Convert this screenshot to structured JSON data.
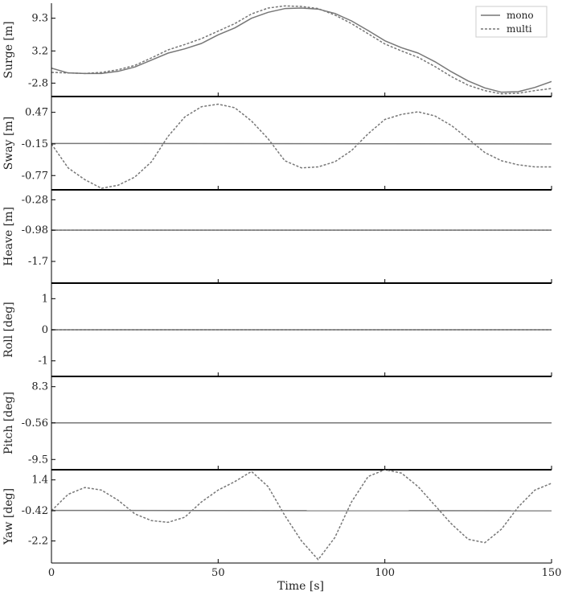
{
  "chart_data": {
    "type": "line",
    "xlabel": "Time [s]",
    "xlim": [
      0,
      150
    ],
    "xticks": [
      0,
      50,
      100,
      150
    ],
    "xtick_labels": [
      "0",
      "50",
      "100",
      "150"
    ],
    "grid": false,
    "legend": {
      "placement": "top-right",
      "entries": [
        {
          "name": "mono",
          "style": "solid",
          "color": "#777777"
        },
        {
          "name": "multi",
          "style": "dashed",
          "color": "#777777"
        }
      ]
    },
    "colors": {
      "mono": "#777777",
      "multi": "#777777",
      "axis": "#000000"
    },
    "panels": [
      {
        "ylabel": "Surge [m]",
        "ylim": [
          -5.3,
          12.1
        ],
        "yticks": [
          9.3,
          3.2,
          -2.8
        ],
        "ytick_labels": [
          "9.3",
          "3.2",
          "-2.8"
        ],
        "series": [
          {
            "name": "mono",
            "style": "solid",
            "x": [
              0,
              5,
              10,
              15,
              20,
              25,
              30,
              35,
              40,
              45,
              50,
              55,
              60,
              65,
              70,
              75,
              80,
              85,
              90,
              95,
              100,
              105,
              110,
              115,
              120,
              125,
              130,
              135,
              140,
              145,
              150
            ],
            "y": [
              0.0,
              -0.9,
              -1.0,
              -1.0,
              -0.6,
              0.2,
              1.5,
              2.8,
              3.6,
              4.6,
              6.2,
              7.5,
              9.3,
              10.4,
              11.1,
              11.2,
              11.0,
              10.2,
              8.8,
              7.0,
              5.1,
              3.8,
              2.8,
              1.2,
              -0.7,
              -2.4,
              -3.7,
              -4.5,
              -4.4,
              -3.6,
              -2.5
            ]
          },
          {
            "name": "multi",
            "style": "dashed",
            "x": [
              0,
              5,
              10,
              15,
              20,
              25,
              30,
              35,
              40,
              45,
              50,
              55,
              60,
              65,
              70,
              75,
              80,
              85,
              90,
              95,
              100,
              105,
              110,
              115,
              120,
              125,
              130,
              135,
              140,
              145,
              150
            ],
            "y": [
              -0.8,
              -0.9,
              -1.0,
              -0.8,
              -0.3,
              0.5,
              1.9,
              3.4,
              4.4,
              5.5,
              6.9,
              8.3,
              10.1,
              11.2,
              11.6,
              11.5,
              11.1,
              9.9,
              8.3,
              6.4,
              4.5,
              3.2,
              2.0,
              0.3,
              -1.6,
              -3.2,
              -4.2,
              -4.8,
              -4.7,
              -4.2,
              -3.8
            ]
          }
        ]
      },
      {
        "ylabel": "Sway [m]",
        "ylim": [
          -1.05,
          0.78
        ],
        "yticks": [
          0.47,
          -0.15,
          -0.77
        ],
        "ytick_labels": [
          "0.47",
          "-0.15",
          "-0.77"
        ],
        "series": [
          {
            "name": "mono",
            "style": "solid",
            "x": [
              0,
              150
            ],
            "y": [
              -0.14,
              -0.15
            ]
          },
          {
            "name": "multi",
            "style": "dashed",
            "x": [
              0,
              5,
              10,
              15,
              20,
              25,
              30,
              35,
              40,
              45,
              50,
              55,
              60,
              65,
              70,
              75,
              80,
              85,
              90,
              95,
              100,
              105,
              110,
              115,
              120,
              125,
              130,
              135,
              140,
              145,
              150
            ],
            "y": [
              -0.15,
              -0.62,
              -0.85,
              -1.02,
              -0.96,
              -0.8,
              -0.5,
              0.0,
              0.38,
              0.58,
              0.63,
              0.56,
              0.3,
              -0.05,
              -0.48,
              -0.62,
              -0.6,
              -0.5,
              -0.28,
              0.05,
              0.33,
              0.43,
              0.48,
              0.4,
              0.21,
              -0.05,
              -0.32,
              -0.48,
              -0.56,
              -0.6,
              -0.6
            ]
          }
        ]
      },
      {
        "ylabel": "Heave [m]",
        "ylim": [
          -2.2,
          -0.05
        ],
        "yticks": [
          -0.28,
          -0.98,
          -1.7
        ],
        "ytick_labels": [
          "-0.28",
          "-0.98",
          "-1.7"
        ],
        "series": [
          {
            "name": "mono",
            "style": "solid",
            "x": [
              0,
              150
            ],
            "y": [
              -0.98,
              -0.98
            ]
          },
          {
            "name": "multi",
            "style": "dashed",
            "x": [
              0,
              150
            ],
            "y": [
              -0.98,
              -0.98
            ]
          }
        ]
      },
      {
        "ylabel": "Roll [deg]",
        "ylim": [
          -1.5,
          1.5
        ],
        "yticks": [
          1,
          0,
          -1
        ],
        "ytick_labels": [
          "1",
          "0",
          "-1"
        ],
        "series": [
          {
            "name": "mono",
            "style": "solid",
            "x": [
              0,
              150
            ],
            "y": [
              0,
              0
            ]
          },
          {
            "name": "multi",
            "style": "dashed",
            "x": [
              0,
              150
            ],
            "y": [
              0,
              0
            ]
          }
        ]
      },
      {
        "ylabel": "Pitch [deg]",
        "ylim": [
          -12.0,
          10.8
        ],
        "yticks": [
          8.3,
          -0.56,
          -9.5
        ],
        "ytick_labels": [
          "8.3",
          "-0.56",
          "-9.5"
        ],
        "series": [
          {
            "name": "mono",
            "style": "solid",
            "x": [
              0,
              150
            ],
            "y": [
              -0.56,
              -0.56
            ]
          },
          {
            "name": "multi",
            "style": "dashed",
            "x": [
              0,
              150
            ],
            "y": [
              -0.56,
              -0.56
            ]
          }
        ]
      },
      {
        "ylabel": "Yaw [deg]",
        "ylim": [
          -3.5,
          2.0
        ],
        "yticks": [
          1.4,
          -0.42,
          -2.2
        ],
        "ytick_labels": [
          "1.4",
          "-0.42",
          "-2.2"
        ],
        "series": [
          {
            "name": "mono",
            "style": "solid",
            "x": [
              0,
              150
            ],
            "y": [
              -0.4,
              -0.42
            ]
          },
          {
            "name": "multi",
            "style": "dashed",
            "x": [
              0,
              5,
              10,
              15,
              20,
              25,
              30,
              35,
              40,
              45,
              50,
              55,
              60,
              65,
              70,
              75,
              80,
              85,
              90,
              95,
              100,
              105,
              110,
              115,
              120,
              125,
              130,
              135,
              140,
              145,
              150
            ],
            "y": [
              -0.42,
              0.55,
              0.95,
              0.8,
              0.2,
              -0.6,
              -1.0,
              -1.1,
              -0.8,
              0.1,
              0.8,
              1.3,
              1.9,
              1.0,
              -0.7,
              -2.2,
              -3.3,
              -2.0,
              0.1,
              1.6,
              2.0,
              1.8,
              1.0,
              -0.1,
              -1.2,
              -2.1,
              -2.3,
              -1.5,
              -0.2,
              0.8,
              1.2
            ]
          }
        ]
      }
    ]
  }
}
